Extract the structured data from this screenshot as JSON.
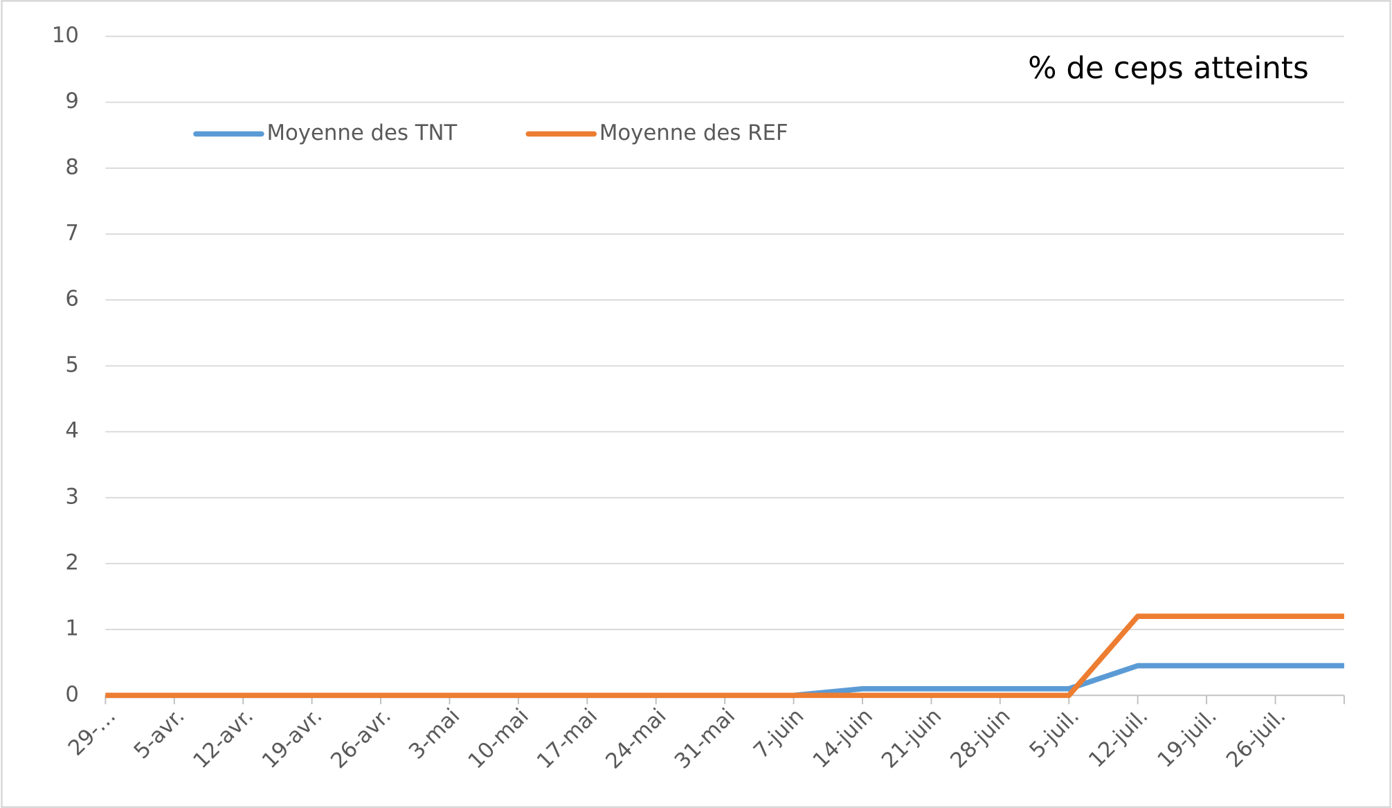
{
  "chart_data": {
    "type": "line",
    "title": "% de ceps atteints",
    "categories": [
      "29-…",
      "5-avr.",
      "12-avr.",
      "19-avr.",
      "26-avr.",
      "3-mai",
      "10-mai",
      "17-mai",
      "24-mai",
      "31-mai",
      "7-juin",
      "14-juin",
      "21-juin",
      "28-juin",
      "5-juil.",
      "12-juil.",
      "19-juil.",
      "26-juil.",
      null
    ],
    "series": [
      {
        "name": "Moyenne des TNT",
        "color": "#5b9bd5",
        "values": [
          0,
          0,
          0,
          0,
          0,
          0,
          0,
          0,
          0,
          0,
          0,
          0.1,
          0.1,
          0.1,
          0.1,
          0.45,
          0.45,
          0.45,
          0.45
        ]
      },
      {
        "name": "Moyenne des REF",
        "color": "#ed7d31",
        "values": [
          0,
          0,
          0,
          0,
          0,
          0,
          0,
          0,
          0,
          0,
          0,
          0,
          0,
          0,
          0,
          1.2,
          1.2,
          1.2,
          1.2
        ]
      }
    ],
    "ylim": [
      0,
      10
    ],
    "yticks": [
      0,
      1,
      2,
      3,
      4,
      5,
      6,
      7,
      8,
      9,
      10
    ],
    "grid": true,
    "legend": "top-left"
  }
}
